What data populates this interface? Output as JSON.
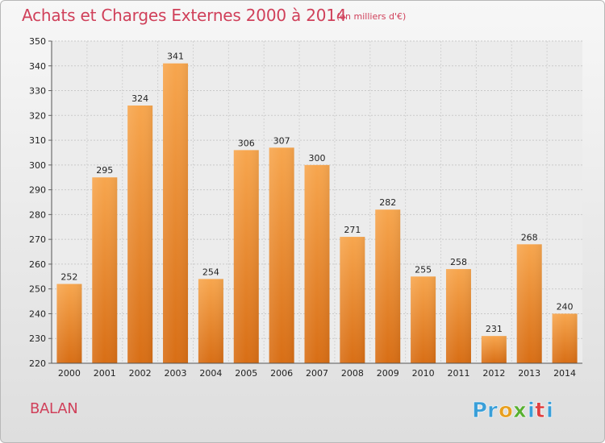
{
  "header": {
    "title": "Achats et Charges Externes 2000 à 2014",
    "subtitle": "(en milliers d'€)"
  },
  "place_name": "BALAN",
  "logo": {
    "letters": [
      "P",
      "r",
      "o",
      "x",
      "i",
      "t",
      "i"
    ],
    "colors": [
      "#3a9fd8",
      "#3a9fd8",
      "#e8a020",
      "#58b030",
      "#3a9fd8",
      "#e04040",
      "#3a9fd8"
    ]
  },
  "chart_data": {
    "type": "bar",
    "categories": [
      "2000",
      "2001",
      "2002",
      "2003",
      "2004",
      "2005",
      "2006",
      "2007",
      "2008",
      "2009",
      "2010",
      "2011",
      "2012",
      "2013",
      "2014"
    ],
    "values": [
      252,
      295,
      324,
      341,
      254,
      306,
      307,
      300,
      271,
      282,
      255,
      258,
      231,
      268,
      240
    ],
    "ylim": [
      220,
      350
    ],
    "yticks": [
      220,
      230,
      240,
      250,
      260,
      270,
      280,
      290,
      300,
      310,
      320,
      330,
      340,
      350
    ],
    "grid": true,
    "bar_color_top": "#f7a64e",
    "bar_color_bottom": "#d86e15"
  }
}
